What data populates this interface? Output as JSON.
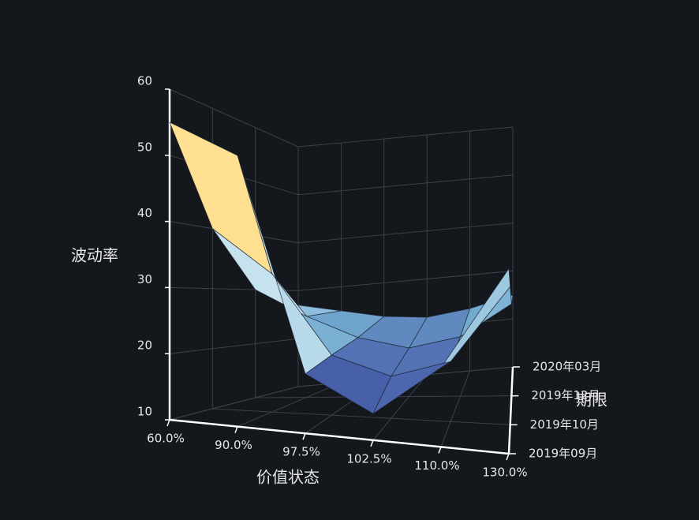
{
  "chart_data": {
    "type": "surface",
    "x_label": "价值状态",
    "y_label": "期限",
    "z_label": "波动率",
    "x_categories": [
      "60.0%",
      "90.0%",
      "97.5%",
      "102.5%",
      "110.0%",
      "130.0%"
    ],
    "y_categories": [
      "2019年09月",
      "2019年10月",
      "2019年12月",
      "2020年03月"
    ],
    "values": [
      [
        55,
        51,
        19,
        14,
        22,
        38
      ],
      [
        40,
        33,
        20,
        17,
        20,
        33
      ],
      [
        30,
        25,
        21,
        19,
        21,
        27
      ],
      [
        27,
        25,
        23,
        22,
        23,
        25
      ]
    ],
    "zlim": [
      10,
      60
    ],
    "zticks": [
      10,
      20,
      30,
      40,
      50,
      60
    ],
    "colors": [
      "#313695",
      "#74add1",
      "#e0f3f8",
      "#fee090",
      "#d73027"
    ],
    "grid": true
  }
}
